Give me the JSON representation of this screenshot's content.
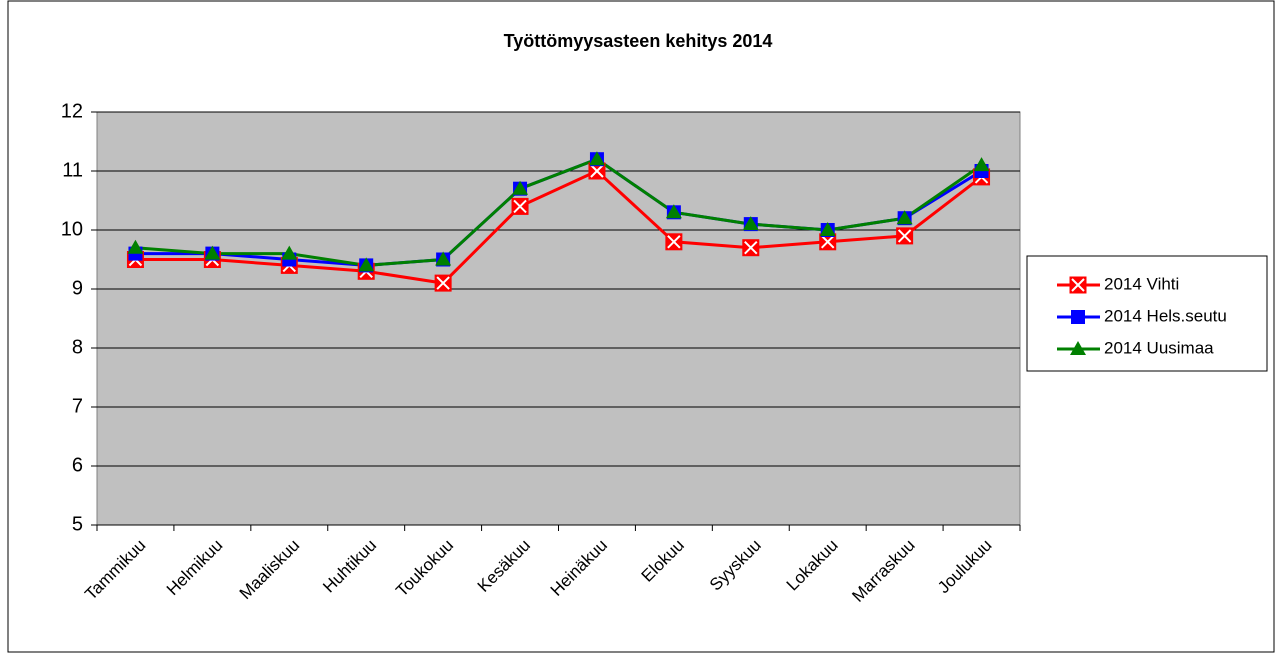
{
  "chart_data": {
    "type": "line",
    "title": "Työttömyysasteen kehitys 2014",
    "categories": [
      "Tammikuu",
      "Helmikuu",
      "Maaliskuu",
      "Huhtikuu",
      "Toukokuu",
      "Kesäkuu",
      "Heinäkuu",
      "Elokuu",
      "Syyskuu",
      "Lokakuu",
      "Marraskuu",
      "Joulukuu"
    ],
    "series": [
      {
        "name": "2014 Vihti",
        "color": "#ff0000",
        "values": [
          9.5,
          9.5,
          9.4,
          9.3,
          9.1,
          10.4,
          11.0,
          9.8,
          9.7,
          9.8,
          9.9,
          10.9
        ]
      },
      {
        "name": "2014 Hels.seutu",
        "color": "#0000ff",
        "values": [
          9.6,
          9.6,
          9.5,
          9.4,
          9.5,
          10.7,
          11.2,
          10.3,
          10.1,
          10.0,
          10.2,
          11.0
        ]
      },
      {
        "name": "2014 Uusimaa",
        "color": "#008000",
        "values": [
          9.7,
          9.6,
          9.6,
          9.4,
          9.5,
          10.7,
          11.2,
          10.3,
          10.1,
          10.0,
          10.2,
          11.1
        ]
      }
    ],
    "ylim": [
      5,
      12
    ],
    "yticks": [
      5,
      6,
      7,
      8,
      9,
      10,
      11,
      12
    ],
    "grid": true,
    "legend": "right"
  }
}
